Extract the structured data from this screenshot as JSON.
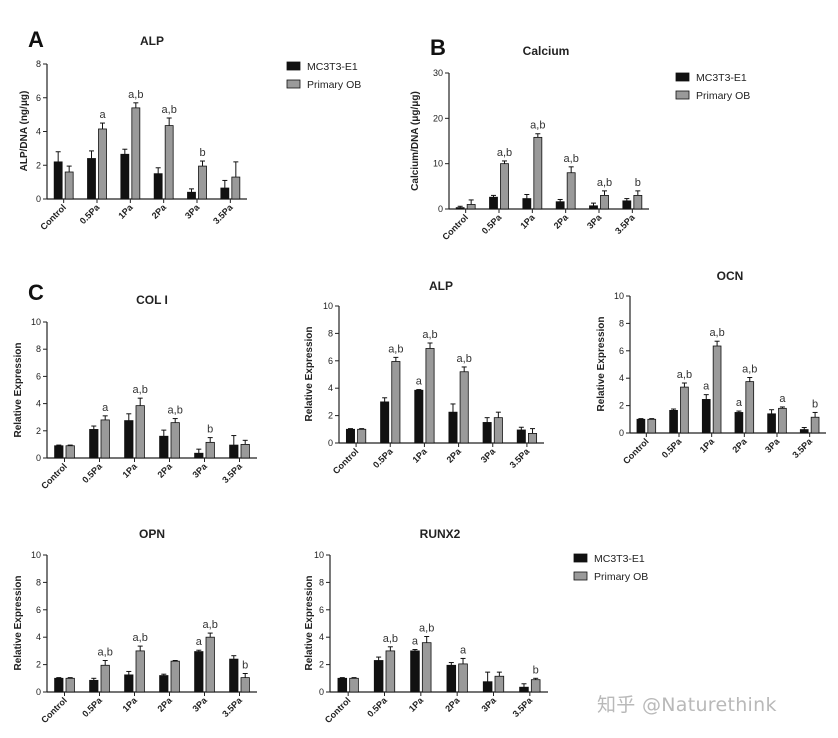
{
  "watermark": "知乎 @Naturethink",
  "colors": {
    "mc3t3": "#111111",
    "primary": "#9a9a9a",
    "axis": "#222222",
    "sig": "#333333"
  },
  "chart_data": [
    {
      "id": "A_alp",
      "type": "bar",
      "panel_letter": "A",
      "title": "ALP",
      "xlabel": "",
      "ylabel": "ALP/DNA (ng/μg)",
      "ylim": [
        0,
        8
      ],
      "yticks": [
        0,
        2,
        4,
        6,
        8
      ],
      "categories": [
        "Control",
        "0.5Pa",
        "1Pa",
        "2Pa",
        "3Pa",
        "3.5Pa"
      ],
      "legend": "right",
      "series": [
        {
          "name": "MC3T3-E1",
          "values": [
            2.2,
            2.4,
            2.65,
            1.5,
            0.4,
            0.65
          ],
          "errors": [
            0.6,
            0.45,
            0.3,
            0.35,
            0.2,
            0.45
          ],
          "labels": [
            "",
            "",
            "",
            "",
            "",
            ""
          ]
        },
        {
          "name": "Primary OB",
          "values": [
            1.6,
            4.15,
            5.4,
            4.35,
            1.95,
            1.3
          ],
          "errors": [
            0.35,
            0.35,
            0.3,
            0.45,
            0.3,
            0.9
          ],
          "labels": [
            "",
            "a",
            "a,b",
            "a,b",
            "b",
            ""
          ]
        }
      ]
    },
    {
      "id": "B_calcium",
      "type": "bar",
      "panel_letter": "B",
      "title": "Calcium",
      "xlabel": "",
      "ylabel": "Calcium/DNA (μg/μg)",
      "ylim": [
        0,
        30
      ],
      "yticks": [
        0,
        10,
        20,
        30
      ],
      "categories": [
        "Control",
        "0.5Pa",
        "1Pa",
        "2Pa",
        "3Pa",
        "3.5Pa"
      ],
      "legend": "right",
      "series": [
        {
          "name": "MC3T3-E1",
          "values": [
            0.3,
            2.6,
            2.3,
            1.6,
            0.7,
            1.8
          ],
          "errors": [
            0.3,
            0.4,
            0.9,
            0.5,
            0.6,
            0.5
          ],
          "labels": [
            "",
            "",
            "",
            "",
            "",
            ""
          ]
        },
        {
          "name": "Primary OB",
          "values": [
            1.0,
            10.0,
            15.8,
            8.0,
            3.0,
            3.0
          ],
          "errors": [
            1.0,
            0.6,
            0.8,
            1.3,
            1.0,
            1.0
          ],
          "labels": [
            "",
            "a,b",
            "a,b",
            "a,b",
            "a,b",
            "b"
          ]
        }
      ]
    },
    {
      "id": "C_col1",
      "type": "bar",
      "panel_letter": "C",
      "title": "COL I",
      "xlabel": "",
      "ylabel": "Relative Expression",
      "ylim": [
        0,
        10
      ],
      "yticks": [
        0,
        2,
        4,
        6,
        8,
        10
      ],
      "categories": [
        "Control",
        "0.5Pa",
        "1Pa",
        "2Pa",
        "3Pa",
        "3.5Pa"
      ],
      "series": [
        {
          "name": "MC3T3-E1",
          "values": [
            0.9,
            2.1,
            2.75,
            1.6,
            0.35,
            0.95
          ],
          "errors": [
            0.05,
            0.25,
            0.5,
            0.45,
            0.3,
            0.7
          ],
          "labels": [
            "",
            "",
            "",
            "",
            "",
            ""
          ]
        },
        {
          "name": "Primary OB",
          "values": [
            0.9,
            2.8,
            3.85,
            2.6,
            1.15,
            1.0
          ],
          "errors": [
            0.05,
            0.3,
            0.55,
            0.3,
            0.35,
            0.3
          ],
          "labels": [
            "",
            "a",
            "a,b",
            "a,b",
            "b",
            ""
          ]
        }
      ]
    },
    {
      "id": "C_alp",
      "type": "bar",
      "title": "ALP",
      "xlabel": "",
      "ylabel": "Relative Expression",
      "ylim": [
        0,
        10
      ],
      "yticks": [
        0,
        2,
        4,
        6,
        8,
        10
      ],
      "categories": [
        "Control",
        "0.5Pa",
        "1Pa",
        "2Pa",
        "3Pa",
        "3.5Pa"
      ],
      "series": [
        {
          "name": "MC3T3-E1",
          "values": [
            1.0,
            3.0,
            3.85,
            2.25,
            1.5,
            0.95
          ],
          "errors": [
            0.05,
            0.3,
            0.05,
            0.6,
            0.35,
            0.2
          ],
          "labels": [
            "",
            "",
            "a",
            "",
            "",
            ""
          ]
        },
        {
          "name": "Primary OB",
          "values": [
            1.0,
            5.95,
            6.9,
            5.2,
            1.85,
            0.7
          ],
          "errors": [
            0.05,
            0.3,
            0.4,
            0.35,
            0.4,
            0.35
          ],
          "labels": [
            "",
            "a,b",
            "a,b",
            "a,b",
            "",
            ""
          ]
        }
      ]
    },
    {
      "id": "C_ocn",
      "type": "bar",
      "title": "OCN",
      "xlabel": "",
      "ylabel": "Relative Expression",
      "ylim": [
        0,
        10
      ],
      "yticks": [
        0,
        2,
        4,
        6,
        8,
        10
      ],
      "categories": [
        "Control",
        "0.5Pa",
        "1Pa",
        "2Pa",
        "3Pa",
        "3.5Pa"
      ],
      "series": [
        {
          "name": "MC3T3-E1",
          "values": [
            1.0,
            1.65,
            2.45,
            1.5,
            1.4,
            0.25
          ],
          "errors": [
            0.05,
            0.1,
            0.35,
            0.1,
            0.3,
            0.15
          ],
          "labels": [
            "",
            "",
            "a",
            "a",
            "",
            ""
          ]
        },
        {
          "name": "Primary OB",
          "values": [
            1.0,
            3.35,
            6.35,
            3.75,
            1.8,
            1.15
          ],
          "errors": [
            0.05,
            0.3,
            0.35,
            0.3,
            0.1,
            0.35
          ],
          "labels": [
            "",
            "a,b",
            "a,b",
            "a,b",
            "a",
            "b"
          ]
        }
      ]
    },
    {
      "id": "C_opn",
      "type": "bar",
      "title": "OPN",
      "xlabel": "",
      "ylabel": "Relative Expression",
      "ylim": [
        0,
        10
      ],
      "yticks": [
        0,
        2,
        4,
        6,
        8,
        10
      ],
      "categories": [
        "Control",
        "0.5Pa",
        "1Pa",
        "2Pa",
        "3Pa",
        "3.5Pa"
      ],
      "series": [
        {
          "name": "MC3T3-E1",
          "values": [
            1.0,
            0.85,
            1.25,
            1.2,
            2.95,
            2.4
          ],
          "errors": [
            0.05,
            0.15,
            0.25,
            0.1,
            0.1,
            0.25
          ],
          "labels": [
            "",
            "",
            "",
            "",
            "a",
            ""
          ]
        },
        {
          "name": "Primary OB",
          "values": [
            1.0,
            1.95,
            3.0,
            2.25,
            4.0,
            1.05
          ],
          "errors": [
            0.05,
            0.35,
            0.35,
            0.05,
            0.3,
            0.3
          ],
          "labels": [
            "",
            "a,b",
            "a,b",
            "",
            "a,b",
            "b"
          ]
        }
      ]
    },
    {
      "id": "C_runx2",
      "type": "bar",
      "title": "RUNX2",
      "xlabel": "",
      "ylabel": "Relative Expression",
      "ylim": [
        0,
        10
      ],
      "yticks": [
        0,
        2,
        4,
        6,
        8,
        10
      ],
      "categories": [
        "Control",
        "0.5Pa",
        "1Pa",
        "2Pa",
        "3Pa",
        "3.5Pa"
      ],
      "legend": "right",
      "series": [
        {
          "name": "MC3T3-E1",
          "values": [
            1.0,
            2.3,
            3.0,
            1.95,
            0.75,
            0.35
          ],
          "errors": [
            0.05,
            0.25,
            0.1,
            0.2,
            0.7,
            0.25
          ],
          "labels": [
            "",
            "",
            "a",
            "",
            "",
            ""
          ]
        },
        {
          "name": "Primary OB",
          "values": [
            1.0,
            3.0,
            3.6,
            2.05,
            1.15,
            0.9
          ],
          "errors": [
            0.05,
            0.3,
            0.45,
            0.4,
            0.3,
            0.1
          ],
          "labels": [
            "",
            "a,b",
            "a,b",
            "a",
            "",
            "b"
          ]
        }
      ]
    }
  ]
}
